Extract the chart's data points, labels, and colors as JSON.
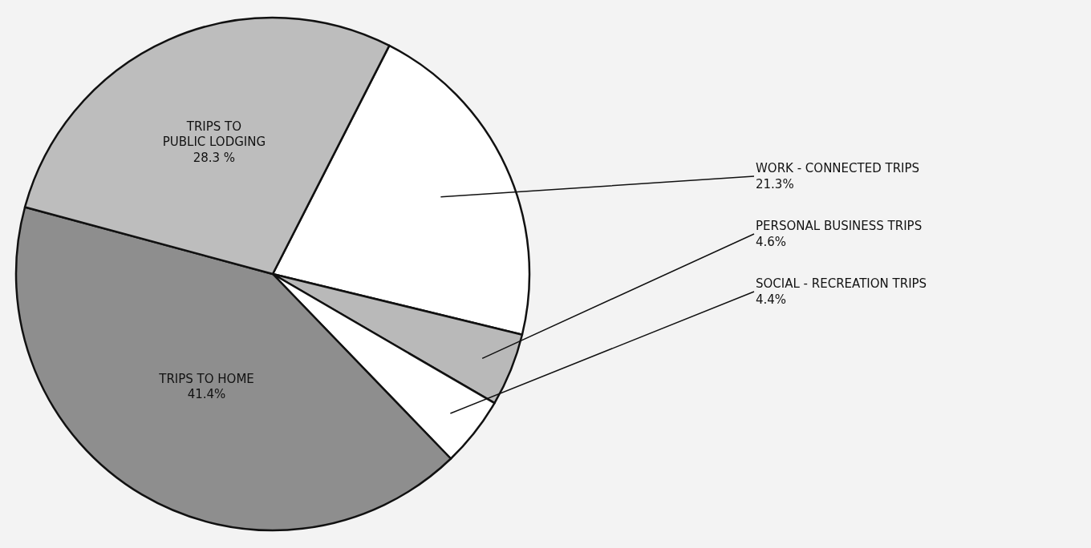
{
  "chart_data": {
    "type": "pie",
    "categories": [
      "WORK - CONNECTED TRIPS",
      "PERSONAL BUSINESS TRIPS",
      "SOCIAL - RECREATION TRIPS",
      "TRIPS TO HOME",
      "TRIPS TO PUBLIC LODGING"
    ],
    "values": [
      21.3,
      4.6,
      4.4,
      41.4,
      28.3
    ],
    "value_labels": [
      "21.3%",
      "4.6%",
      "4.4%",
      "41.4%",
      "28.3 %"
    ],
    "colors": [
      "#ffffff",
      "#b9b9b9",
      "#ffffff",
      "#8e8e8e",
      "#bdbdbd"
    ]
  }
}
